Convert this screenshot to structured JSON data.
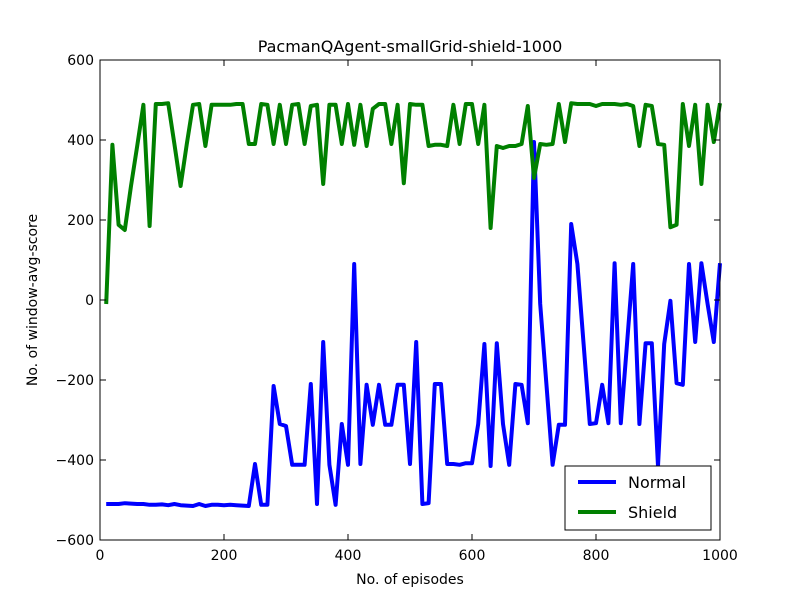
{
  "chart_data": {
    "type": "line",
    "title": "PacmanQAgent-smallGrid-shield-1000",
    "xlabel": "No. of episodes",
    "ylabel": "No. of window-avg-score",
    "xlim": [
      0,
      1000
    ],
    "ylim": [
      -600,
      600
    ],
    "xticks": [
      0,
      200,
      400,
      600,
      800,
      1000
    ],
    "yticks": [
      -600,
      -400,
      -200,
      0,
      200,
      400,
      600
    ],
    "grid": false,
    "legend_position": "lower-right",
    "x": [
      10,
      20,
      30,
      40,
      50,
      60,
      70,
      80,
      90,
      100,
      110,
      120,
      130,
      140,
      150,
      160,
      170,
      180,
      190,
      200,
      210,
      220,
      230,
      240,
      250,
      260,
      270,
      280,
      290,
      300,
      310,
      320,
      330,
      340,
      350,
      360,
      370,
      380,
      390,
      400,
      410,
      420,
      430,
      440,
      450,
      460,
      470,
      480,
      490,
      500,
      510,
      520,
      530,
      540,
      550,
      560,
      570,
      580,
      590,
      600,
      610,
      620,
      630,
      640,
      650,
      660,
      670,
      680,
      690,
      700,
      710,
      720,
      730,
      740,
      750,
      760,
      770,
      780,
      790,
      800,
      810,
      820,
      830,
      840,
      850,
      860,
      870,
      880,
      890,
      900,
      910,
      920,
      930,
      940,
      950,
      960,
      970,
      980,
      990,
      1000
    ],
    "series": [
      {
        "name": "Normal",
        "color": "#0000ff",
        "values": [
          -510,
          -510,
          -510,
          -508,
          -509,
          -510,
          -510,
          -512,
          -512,
          -511,
          -513,
          -510,
          -513,
          -514,
          -515,
          -510,
          -515,
          -512,
          -512,
          -513,
          -512,
          -513,
          -514,
          -515,
          -410,
          -512,
          -512,
          -215,
          -310,
          -315,
          -412,
          -412,
          -412,
          -210,
          -510,
          -105,
          -412,
          -512,
          -310,
          -412,
          90,
          -410,
          -212,
          -312,
          -212,
          -312,
          -312,
          -212,
          -212,
          -410,
          -105,
          -510,
          -508,
          -210,
          -210,
          -410,
          -410,
          -412,
          -408,
          -408,
          -310,
          -110,
          -415,
          -108,
          -310,
          -412,
          -210,
          -212,
          -308,
          395,
          -10,
          -210,
          -412,
          -312,
          -312,
          190,
          90,
          -110,
          -310,
          -308,
          -212,
          -308,
          92,
          -308,
          -110,
          90,
          -310,
          -108,
          -108,
          -415,
          -110,
          -2,
          -208,
          -212,
          90,
          -105,
          92,
          -10,
          -105,
          92
        ]
      },
      {
        "name": "Shield",
        "color": "#008000",
        "values": [
          -10,
          388,
          188,
          175,
          285,
          385,
          488,
          185,
          490,
          490,
          492,
          390,
          285,
          390,
          488,
          490,
          385,
          488,
          488,
          488,
          488,
          490,
          490,
          390,
          390,
          490,
          488,
          390,
          488,
          390,
          488,
          490,
          390,
          485,
          488,
          290,
          488,
          488,
          390,
          490,
          388,
          488,
          385,
          478,
          490,
          490,
          390,
          488,
          292,
          490,
          488,
          488,
          385,
          388,
          388,
          385,
          488,
          390,
          490,
          490,
          390,
          488,
          180,
          385,
          380,
          385,
          385,
          390,
          485,
          305,
          390,
          388,
          390,
          490,
          395,
          492,
          490,
          490,
          490,
          485,
          490,
          490,
          490,
          488,
          490,
          485,
          385,
          488,
          485,
          390,
          388,
          182,
          188,
          490,
          385,
          488,
          290,
          488,
          395,
          492
        ]
      }
    ]
  }
}
